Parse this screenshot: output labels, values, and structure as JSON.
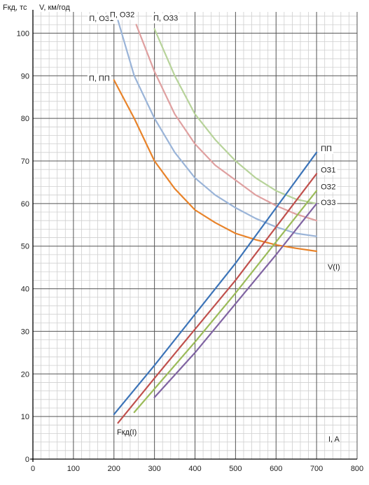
{
  "chart_data": {
    "type": "line",
    "y_axis_label_left": "Fкд, тс",
    "y_axis_label_right": "V, км/год",
    "x_axis_label": "I, A",
    "xlim": [
      0,
      800
    ],
    "ylim": [
      0,
      105
    ],
    "x_ticks": [
      0,
      100,
      200,
      300,
      400,
      500,
      600,
      700,
      800
    ],
    "y_ticks": [
      0,
      10,
      20,
      30,
      40,
      50,
      60,
      70,
      80,
      90,
      100
    ],
    "grid": true,
    "annotations": [
      "V(I)",
      "Fкд(I)"
    ],
    "series": [
      {
        "name": "П, ПП",
        "group": "V",
        "color": "#e8832a",
        "x": [
          200,
          250,
          300,
          350,
          400,
          450,
          500,
          550,
          600,
          650,
          700
        ],
        "y": [
          89,
          80,
          70,
          63.5,
          58.5,
          55.5,
          53,
          51.5,
          50.3,
          49.5,
          48.8
        ]
      },
      {
        "name": "П, ОЗ1",
        "group": "V",
        "color": "#9ab4d8",
        "x": [
          210,
          250,
          300,
          350,
          400,
          450,
          500,
          550,
          600,
          650,
          700
        ],
        "y": [
          103,
          90,
          80,
          72,
          66,
          62,
          59,
          56.5,
          54.5,
          53,
          52.3
        ]
      },
      {
        "name": "П, ОЗ2",
        "group": "V",
        "color": "#dfa0a0",
        "x": [
          255,
          300,
          350,
          400,
          450,
          500,
          550,
          600,
          650,
          700
        ],
        "y": [
          102,
          91,
          81,
          74,
          69,
          65.5,
          62,
          59.5,
          57.5,
          56
        ]
      },
      {
        "name": "П, ОЗ3",
        "group": "V",
        "color": "#b7d39a",
        "x": [
          300,
          350,
          400,
          450,
          500,
          550,
          600,
          650,
          700
        ],
        "y": [
          101,
          90,
          81,
          75,
          70,
          66,
          63,
          61,
          60
        ]
      },
      {
        "name": "ПП",
        "group": "F",
        "color": "#3c74b8",
        "x": [
          200,
          300,
          400,
          500,
          600,
          700
        ],
        "y": [
          10.5,
          22,
          34,
          46,
          59,
          72
        ]
      },
      {
        "name": "ОЗ1",
        "group": "F",
        "color": "#c0504d",
        "x": [
          210,
          300,
          400,
          500,
          600,
          700
        ],
        "y": [
          8.5,
          19,
          30.5,
          42,
          54.5,
          67
        ]
      },
      {
        "name": "ОЗ2",
        "group": "F",
        "color": "#9bbb59",
        "x": [
          250,
          300,
          400,
          500,
          600,
          700
        ],
        "y": [
          11,
          16.5,
          27.5,
          39,
          51,
          63
        ]
      },
      {
        "name": "ОЗ3",
        "group": "F",
        "color": "#8064a2",
        "x": [
          300,
          400,
          500,
          600,
          700
        ],
        "y": [
          14.5,
          25,
          36.5,
          48,
          60
        ]
      }
    ]
  }
}
